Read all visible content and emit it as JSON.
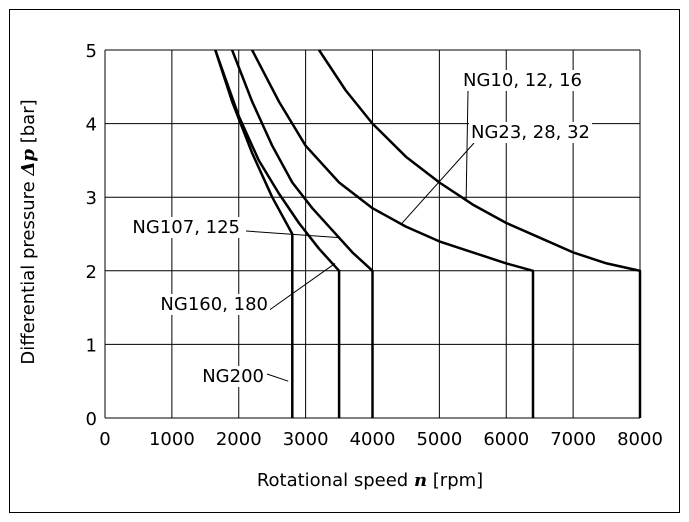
{
  "chart_data": {
    "type": "line",
    "xlabel": {
      "prefix": "Rotational speed ",
      "symbol": "n",
      "suffix": " [rpm]"
    },
    "ylabel": {
      "prefix": "Differential pressure ",
      "symbol": "Δp",
      "suffix": " [bar]"
    },
    "xlim": [
      0,
      8000
    ],
    "ylim": [
      0,
      5
    ],
    "xticks": [
      "0",
      "1000",
      "2000",
      "3000",
      "4000",
      "5000",
      "6000",
      "7000",
      "8000"
    ],
    "yticks": [
      "0",
      "1",
      "2",
      "3",
      "4",
      "5"
    ],
    "grid": true,
    "series": [
      {
        "name": "NG10, 12, 16",
        "x": [
          3200,
          3600,
          4000,
          4500,
          5000,
          5500,
          6000,
          6500,
          7000,
          7500,
          8000,
          8000
        ],
        "y": [
          5.0,
          4.45,
          4.0,
          3.55,
          3.2,
          2.9,
          2.65,
          2.45,
          2.25,
          2.1,
          2.0,
          0
        ]
      },
      {
        "name": "NG23, 28, 32",
        "x": [
          2200,
          2600,
          3000,
          3500,
          4000,
          4500,
          5000,
          5500,
          6000,
          6400,
          6400
        ],
        "y": [
          5.0,
          4.3,
          3.7,
          3.2,
          2.85,
          2.6,
          2.4,
          2.25,
          2.1,
          2.0,
          0
        ]
      },
      {
        "name": "NG107, 125",
        "x": [
          1900,
          2200,
          2500,
          2800,
          3100,
          3400,
          3700,
          4000,
          4000
        ],
        "y": [
          5.0,
          4.3,
          3.7,
          3.2,
          2.85,
          2.55,
          2.25,
          2.0,
          0
        ]
      },
      {
        "name": "NG160, 180",
        "x": [
          1650,
          2000,
          2300,
          2600,
          2900,
          3200,
          3500,
          3500
        ],
        "y": [
          5.0,
          4.1,
          3.5,
          3.05,
          2.65,
          2.3,
          2.0,
          0
        ]
      },
      {
        "name": "NG200",
        "x": [
          1650,
          1900,
          2200,
          2500,
          2800,
          2800
        ],
        "y": [
          5.0,
          4.3,
          3.6,
          3.0,
          2.5,
          0
        ]
      }
    ],
    "annotations": [
      {
        "text": "NG10, 12, 16",
        "series": "NG10, 12, 16"
      },
      {
        "text": "NG23, 28, 32",
        "series": "NG23, 28, 32"
      },
      {
        "text": "NG107, 125",
        "series": "NG107, 125"
      },
      {
        "text": "NG160, 180",
        "series": "NG160, 180"
      },
      {
        "text": "NG200",
        "series": "NG200"
      }
    ]
  }
}
